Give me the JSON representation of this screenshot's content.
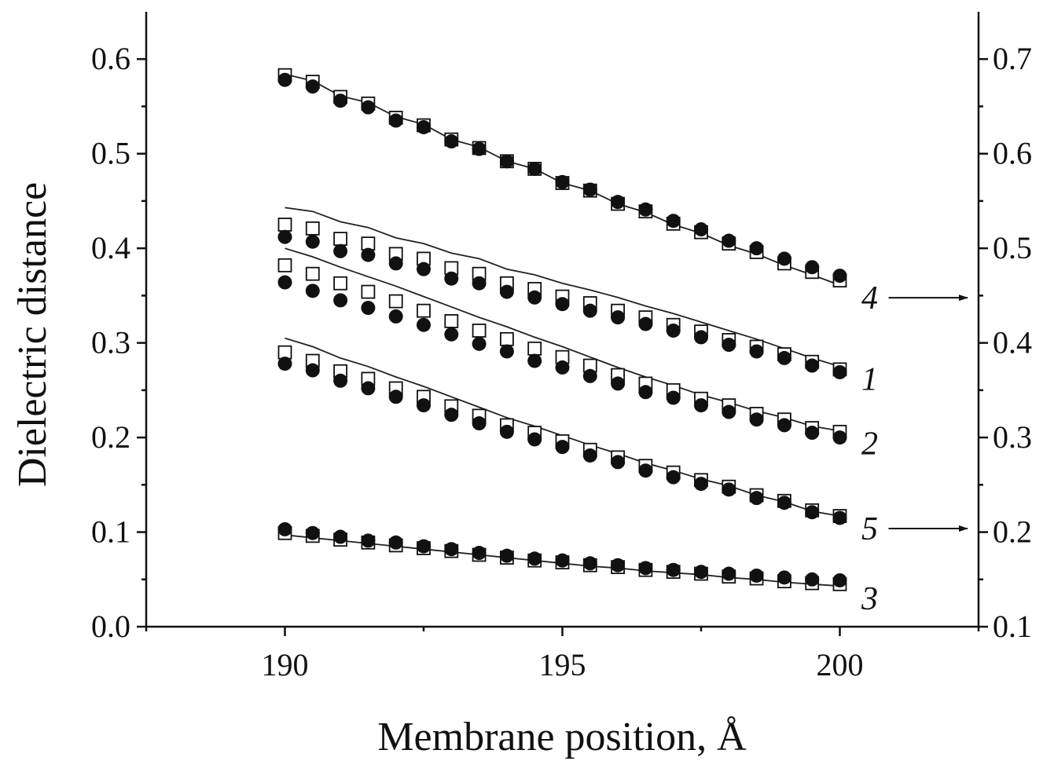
{
  "chart_data": {
    "type": "scatter",
    "xlabel": "Membrane position, Å",
    "ylabel": "Dielectric distance",
    "xlim": [
      187.5,
      202.5
    ],
    "ylim": [
      0,
      0.65
    ],
    "y2lim": [
      0.1,
      0.75
    ],
    "xticks": [
      "190",
      "195",
      "200"
    ],
    "yticks": [
      "0.0",
      "0.1",
      "0.2",
      "0.3",
      "0.4",
      "0.5",
      "0.6"
    ],
    "y2ticks": [
      "0.1",
      "0.2",
      "0.3",
      "0.4",
      "0.5",
      "0.6",
      "0.7"
    ],
    "grid": false,
    "legend": "none",
    "x": [
      190,
      190.5,
      191,
      191.5,
      192,
      192.5,
      193,
      193.5,
      194,
      194.5,
      195,
      195.5,
      196,
      196.5,
      197,
      197.5,
      198,
      198.5,
      199,
      199.5,
      200
    ],
    "series": [
      {
        "name": "1",
        "axis": "left",
        "filled": [
          0.412,
          0.407,
          0.397,
          0.393,
          0.384,
          0.378,
          0.368,
          0.363,
          0.354,
          0.348,
          0.341,
          0.334,
          0.327,
          0.32,
          0.313,
          0.306,
          0.298,
          0.291,
          0.284,
          0.276,
          0.269
        ],
        "open": [
          0.425,
          0.421,
          0.41,
          0.405,
          0.394,
          0.389,
          0.379,
          0.373,
          0.363,
          0.357,
          0.349,
          0.342,
          0.334,
          0.327,
          0.319,
          0.312,
          0.303,
          0.296,
          0.288,
          0.28,
          0.272
        ],
        "line": [
          0.443,
          0.439,
          0.428,
          0.422,
          0.411,
          0.405,
          0.395,
          0.389,
          0.378,
          0.372,
          0.363,
          0.356,
          0.348,
          0.339,
          0.331,
          0.322,
          0.313,
          0.304,
          0.294,
          0.284,
          0.275
        ]
      },
      {
        "name": "2",
        "axis": "left",
        "filled": [
          0.364,
          0.355,
          0.345,
          0.337,
          0.328,
          0.319,
          0.309,
          0.299,
          0.291,
          0.281,
          0.274,
          0.265,
          0.257,
          0.248,
          0.242,
          0.234,
          0.227,
          0.219,
          0.213,
          0.205,
          0.2
        ],
        "open": [
          0.382,
          0.373,
          0.363,
          0.354,
          0.344,
          0.334,
          0.323,
          0.313,
          0.304,
          0.294,
          0.285,
          0.276,
          0.266,
          0.257,
          0.25,
          0.241,
          0.234,
          0.225,
          0.219,
          0.21,
          0.206
        ],
        "line": [
          0.4,
          0.391,
          0.38,
          0.37,
          0.36,
          0.349,
          0.338,
          0.327,
          0.317,
          0.306,
          0.296,
          0.285,
          0.274,
          0.264,
          0.255,
          0.245,
          0.237,
          0.228,
          0.221,
          0.212,
          0.207
        ]
      },
      {
        "name": "3",
        "axis": "left",
        "filled": [
          0.103,
          0.099,
          0.095,
          0.091,
          0.089,
          0.085,
          0.082,
          0.078,
          0.075,
          0.072,
          0.07,
          0.067,
          0.065,
          0.062,
          0.06,
          0.058,
          0.056,
          0.054,
          0.052,
          0.05,
          0.049
        ],
        "open": [
          0.099,
          0.096,
          0.092,
          0.089,
          0.086,
          0.083,
          0.08,
          0.076,
          0.073,
          0.07,
          0.068,
          0.065,
          0.063,
          0.06,
          0.058,
          0.056,
          0.053,
          0.051,
          0.048,
          0.046,
          0.045
        ],
        "line": [
          0.097,
          0.094,
          0.091,
          0.088,
          0.085,
          0.082,
          0.079,
          0.076,
          0.073,
          0.07,
          0.067,
          0.064,
          0.062,
          0.059,
          0.057,
          0.055,
          0.052,
          0.05,
          0.047,
          0.045,
          0.043
        ]
      },
      {
        "name": "4",
        "axis": "right",
        "filled": [
          0.678,
          0.671,
          0.656,
          0.649,
          0.635,
          0.628,
          0.613,
          0.605,
          0.592,
          0.584,
          0.57,
          0.562,
          0.549,
          0.541,
          0.529,
          0.52,
          0.508,
          0.5,
          0.489,
          0.48,
          0.471
        ],
        "open": [
          0.683,
          0.676,
          0.66,
          0.653,
          0.638,
          0.63,
          0.615,
          0.606,
          0.592,
          0.584,
          0.569,
          0.561,
          0.547,
          0.539,
          0.526,
          0.517,
          0.505,
          0.496,
          0.484,
          0.475,
          0.466
        ],
        "line": [
          0.684,
          0.677,
          0.661,
          0.654,
          0.639,
          0.631,
          0.615,
          0.607,
          0.592,
          0.584,
          0.569,
          0.561,
          0.547,
          0.538,
          0.525,
          0.516,
          0.503,
          0.494,
          0.482,
          0.472,
          0.461
        ]
      },
      {
        "name": "5",
        "axis": "right",
        "filled": [
          0.378,
          0.371,
          0.36,
          0.352,
          0.343,
          0.334,
          0.324,
          0.315,
          0.306,
          0.298,
          0.29,
          0.281,
          0.274,
          0.265,
          0.258,
          0.251,
          0.245,
          0.236,
          0.231,
          0.221,
          0.215
        ],
        "open": [
          0.39,
          0.381,
          0.37,
          0.362,
          0.352,
          0.343,
          0.333,
          0.323,
          0.313,
          0.305,
          0.296,
          0.287,
          0.279,
          0.27,
          0.263,
          0.255,
          0.248,
          0.239,
          0.233,
          0.223,
          0.217
        ],
        "line": [
          0.405,
          0.396,
          0.384,
          0.375,
          0.364,
          0.354,
          0.343,
          0.332,
          0.321,
          0.312,
          0.302,
          0.292,
          0.283,
          0.273,
          0.265,
          0.256,
          0.249,
          0.239,
          0.232,
          0.222,
          0.217
        ]
      }
    ],
    "annotations": [
      {
        "text": "4",
        "arrow": "right"
      },
      {
        "text": "1"
      },
      {
        "text": "2"
      },
      {
        "text": "5",
        "arrow": "right"
      },
      {
        "text": "3"
      }
    ]
  }
}
